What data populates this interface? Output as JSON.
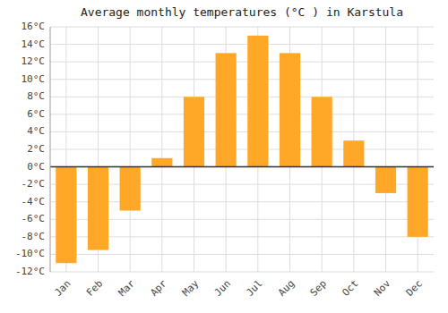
{
  "chart_data": {
    "type": "bar",
    "title": "Average monthly temperatures (°C ) in Karstula",
    "categories": [
      "Jan",
      "Feb",
      "Mar",
      "Apr",
      "May",
      "Jun",
      "Jul",
      "Aug",
      "Sep",
      "Oct",
      "Nov",
      "Dec"
    ],
    "values": [
      -11,
      -9.5,
      -5,
      1,
      8,
      13,
      15,
      13,
      8,
      3,
      -3,
      -8
    ],
    "color": "#FFA726",
    "ylim": [
      -12,
      16
    ],
    "yticks": [
      {
        "value": -12,
        "label": "-12°C"
      },
      {
        "value": -10,
        "label": "-10°C"
      },
      {
        "value": -8,
        "label": "-8°C"
      },
      {
        "value": -6,
        "label": "-6°C"
      },
      {
        "value": -4,
        "label": "-4°C"
      },
      {
        "value": -2,
        "label": "-2°C"
      },
      {
        "value": 0,
        "label": "0°C"
      },
      {
        "value": 2,
        "label": "2°C"
      },
      {
        "value": 4,
        "label": "4°C"
      },
      {
        "value": 6,
        "label": "6°C"
      },
      {
        "value": 8,
        "label": "8°C"
      },
      {
        "value": 10,
        "label": "10°C"
      },
      {
        "value": 12,
        "label": "12°C"
      },
      {
        "value": 14,
        "label": "14°C"
      },
      {
        "value": 16,
        "label": "16°C"
      }
    ],
    "grid": true
  }
}
